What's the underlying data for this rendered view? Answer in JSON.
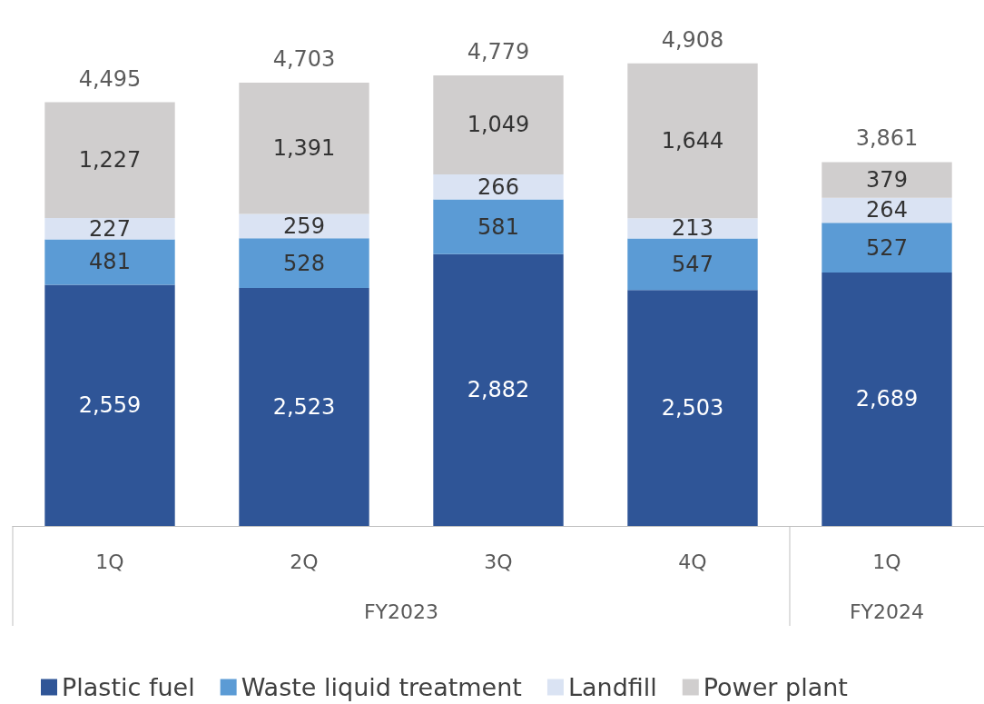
{
  "chart_data": {
    "type": "bar",
    "stacked": true,
    "legend": "bottom",
    "grid": false,
    "categories": [
      "1Q",
      "2Q",
      "3Q",
      "4Q",
      "1Q"
    ],
    "annotations": [
      "FY2023",
      "FY2024"
    ],
    "series": [
      {
        "name": "Plastic fuel",
        "color": "#2f5597",
        "values": [
          2559,
          2523,
          2882,
          2503,
          2689
        ],
        "value_labels": [
          "2,559",
          "2,523",
          "2,882",
          "2,503",
          "2,689"
        ]
      },
      {
        "name": "Waste liquid treatment",
        "color": "#5b9bd5",
        "values": [
          481,
          528,
          581,
          547,
          527
        ],
        "value_labels": [
          "481",
          "528",
          "581",
          "547",
          "527"
        ]
      },
      {
        "name": "Landfill",
        "color": "#dae3f3",
        "values": [
          227,
          259,
          266,
          213,
          264
        ],
        "value_labels": [
          "227",
          "259",
          "266",
          "213",
          "264"
        ]
      },
      {
        "name": "Power plant",
        "color": "#d0cece",
        "values": [
          1227,
          1391,
          1049,
          1644,
          379
        ],
        "value_labels": [
          "1,227",
          "1,391",
          "1,049",
          "1,644",
          "379"
        ]
      }
    ],
    "totals": [
      "4,495",
      "4,703",
      "4,779",
      "4,908",
      "3,861"
    ]
  }
}
